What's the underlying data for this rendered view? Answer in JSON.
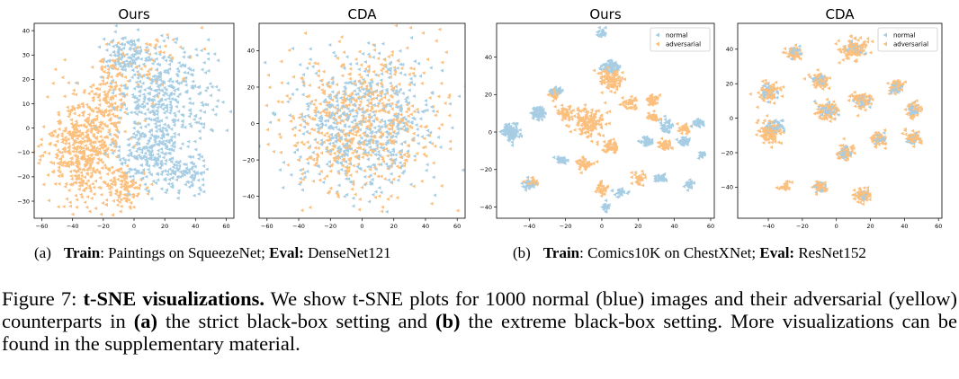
{
  "colors": {
    "normal": "#a6cde3",
    "adversarial": "#fbbf7e"
  },
  "chart_data": [
    {
      "type": "scatter",
      "title": "Ours",
      "xlim": [
        -65,
        65
      ],
      "ylim": [
        -37,
        43
      ],
      "xticks": [
        -60,
        -40,
        -20,
        0,
        20,
        40,
        60
      ],
      "yticks": [
        -30,
        -20,
        -10,
        0,
        10,
        20,
        30,
        40
      ],
      "legend": null,
      "series": [
        {
          "name": "normal",
          "color": "#a6cde3",
          "clusters": [
            [
              20,
              15,
              30,
              18,
              380
            ],
            [
              10,
              -10,
              22,
              14,
              250
            ],
            [
              -5,
              30,
              15,
              8,
              100
            ],
            [
              35,
              -20,
              12,
              8,
              80
            ]
          ]
        },
        {
          "name": "adversarial",
          "color": "#fbbf7e",
          "clusters": [
            [
              -32,
              -8,
              22,
              20,
              560
            ],
            [
              -15,
              15,
              10,
              15,
              120
            ],
            [
              -5,
              -25,
              10,
              8,
              90
            ],
            [
              10,
              25,
              25,
              15,
              60
            ]
          ]
        }
      ]
    },
    {
      "type": "scatter",
      "title": "CDA",
      "xlim": [
        -65,
        65
      ],
      "ylim": [
        -52,
        55
      ],
      "xticks": [
        -60,
        -40,
        -20,
        0,
        20,
        40,
        60
      ],
      "yticks": [
        -40,
        -20,
        0,
        20,
        40
      ],
      "legend": null,
      "series": [
        {
          "name": "normal",
          "color": "#a6cde3",
          "clusters": [
            [
              0,
              0,
              42,
              34,
              600
            ]
          ]
        },
        {
          "name": "adversarial",
          "color": "#fbbf7e",
          "clusters": [
            [
              0,
              0,
              44,
              36,
              600
            ]
          ]
        }
      ]
    },
    {
      "type": "scatter",
      "title": "Ours",
      "xlim": [
        -58,
        62
      ],
      "ylim": [
        -46,
        58
      ],
      "xticks": [
        -40,
        -20,
        0,
        20,
        40,
        60
      ],
      "yticks": [
        -40,
        -20,
        0,
        20,
        40
      ],
      "legend": {
        "position": "top-right",
        "entries": [
          "normal",
          "adversarial"
        ]
      },
      "series": [
        {
          "name": "normal",
          "color": "#a6cde3",
          "clusters": [
            [
              -50,
              0,
              4,
              4,
              120
            ],
            [
              -35,
              10,
              4,
              3,
              60
            ],
            [
              -25,
              22,
              3,
              2,
              40
            ],
            [
              -40,
              -28,
              3,
              2,
              40
            ],
            [
              -22,
              -15,
              3,
              2,
              30
            ],
            [
              5,
              35,
              5,
              3,
              60
            ],
            [
              0,
              53,
              2,
              2,
              30
            ],
            [
              2,
              -40,
              2,
              2,
              20
            ],
            [
              10,
              -32,
              3,
              2,
              30
            ],
            [
              25,
              -5,
              3,
              2,
              40
            ],
            [
              35,
              3,
              3,
              3,
              40
            ],
            [
              45,
              -5,
              3,
              2,
              40
            ],
            [
              53,
              5,
              3,
              2,
              40
            ],
            [
              32,
              -25,
              3,
              2,
              30
            ],
            [
              48,
              -28,
              2,
              2,
              30
            ],
            [
              55,
              -12,
              2,
              2,
              20
            ]
          ]
        },
        {
          "name": "adversarial",
          "color": "#fbbf7e",
          "clusters": [
            [
              -8,
              5,
              8,
              7,
              150
            ],
            [
              5,
              28,
              6,
              5,
              100
            ],
            [
              -20,
              10,
              4,
              3,
              50
            ],
            [
              -27,
              20,
              3,
              3,
              40
            ],
            [
              -10,
              -17,
              4,
              3,
              50
            ],
            [
              5,
              -8,
              4,
              3,
              50
            ],
            [
              15,
              15,
              4,
              3,
              40
            ],
            [
              28,
              17,
              3,
              3,
              40
            ],
            [
              35,
              -7,
              3,
              3,
              40
            ],
            [
              45,
              2,
              3,
              3,
              30
            ],
            [
              20,
              -25,
              3,
              3,
              30
            ],
            [
              0,
              -30,
              3,
              3,
              30
            ],
            [
              -38,
              -27,
              3,
              2,
              25
            ],
            [
              28,
              8,
              3,
              3,
              30
            ]
          ]
        }
      ]
    },
    {
      "type": "scatter",
      "title": "CDA",
      "xlim": [
        -58,
        62
      ],
      "ylim": [
        -58,
        55
      ],
      "xticks": [
        -40,
        -20,
        0,
        20,
        40,
        60
      ],
      "yticks": [
        -40,
        -20,
        0,
        20,
        40
      ],
      "legend": {
        "position": "top-right",
        "entries": [
          "normal",
          "adversarial"
        ]
      },
      "series": [
        {
          "name": "normal",
          "color": "#a6cde3",
          "clusters": [
            [
              -40,
              15,
              4,
              4,
              40
            ],
            [
              -35,
              -5,
              5,
              4,
              40
            ],
            [
              -10,
              22,
              4,
              3,
              30
            ],
            [
              -5,
              5,
              5,
              4,
              40
            ],
            [
              15,
              10,
              4,
              3,
              30
            ],
            [
              35,
              18,
              3,
              3,
              30
            ],
            [
              45,
              5,
              3,
              3,
              30
            ],
            [
              5,
              -20,
              4,
              3,
              30
            ],
            [
              25,
              -12,
              3,
              3,
              30
            ],
            [
              45,
              -12,
              3,
              3,
              30
            ],
            [
              10,
              40,
              5,
              4,
              30
            ],
            [
              -25,
              38,
              3,
              3,
              20
            ],
            [
              -10,
              -40,
              3,
              3,
              20
            ],
            [
              15,
              -45,
              3,
              3,
              25
            ]
          ]
        },
        {
          "name": "adversarial",
          "color": "#fbbf7e",
          "clusters": [
            [
              10,
              40,
              8,
              6,
              120
            ],
            [
              -25,
              38,
              4,
              3,
              50
            ],
            [
              -40,
              15,
              6,
              5,
              80
            ],
            [
              -40,
              -8,
              7,
              6,
              110
            ],
            [
              -10,
              22,
              5,
              4,
              70
            ],
            [
              -5,
              5,
              6,
              5,
              90
            ],
            [
              15,
              10,
              5,
              5,
              80
            ],
            [
              35,
              18,
              4,
              4,
              60
            ],
            [
              45,
              5,
              4,
              4,
              50
            ],
            [
              5,
              -20,
              5,
              4,
              60
            ],
            [
              25,
              -12,
              4,
              4,
              50
            ],
            [
              45,
              -12,
              4,
              4,
              50
            ],
            [
              -10,
              -40,
              4,
              3,
              40
            ],
            [
              15,
              -45,
              5,
              4,
              60
            ],
            [
              -30,
              -40,
              3,
              3,
              30
            ]
          ]
        }
      ]
    }
  ],
  "subcaptions": {
    "a": {
      "tag": "(a)",
      "train_label": "Train",
      "train_text": ": Paintings on SqueezeNet; ",
      "eval_label": "Eval:",
      "eval_text": " DenseNet121"
    },
    "b": {
      "tag": "(b)",
      "train_label": "Train",
      "train_text": ": Comics10K on ChestXNet; ",
      "eval_label": "Eval:",
      "eval_text": " ResNet152"
    }
  },
  "figure_caption": {
    "label": "Figure 7: ",
    "bold": "t-SNE visualizations.",
    "text1": " We show t-SNE plots for 1000 normal (blue) images and their adversarial (yellow) counterparts in ",
    "a": "(a)",
    "text2": " the strict black-box setting and ",
    "b": "(b)",
    "text3": " the extreme black-box setting. More visualizations can be found in the supplementary material."
  }
}
